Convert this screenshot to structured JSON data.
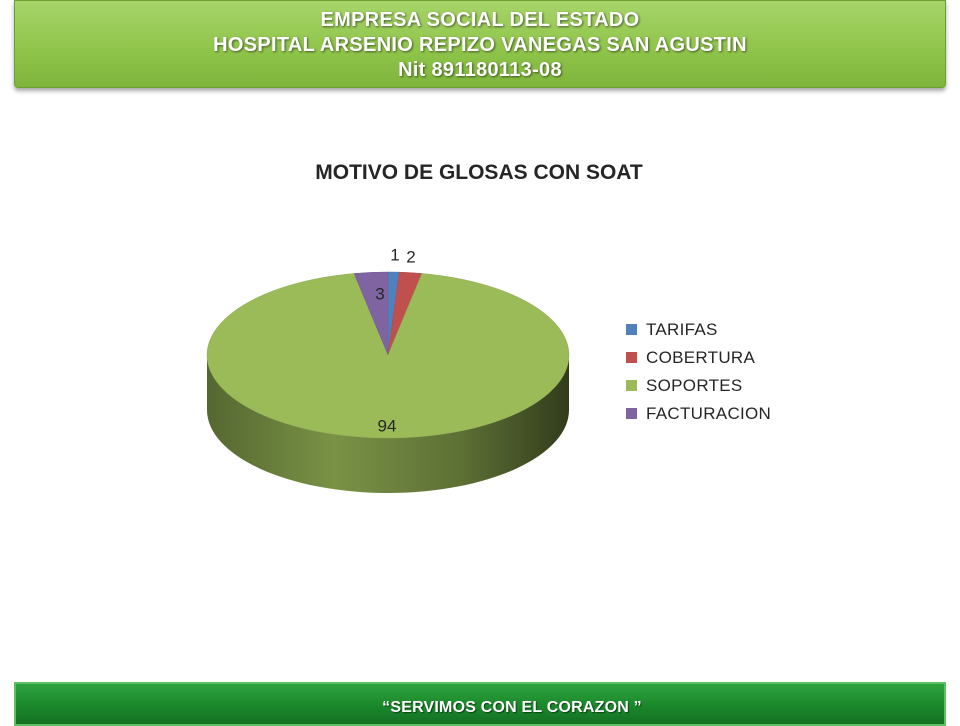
{
  "header": {
    "lines": [
      "EMPRESA SOCIAL DEL ESTADO",
      "HOSPITAL ARSENIO REPIZO  VANEGAS SAN  AGUSTIN",
      "Nit  891180113-08"
    ]
  },
  "chart_data": {
    "type": "pie",
    "title": "MOTIVO DE GLOSAS CON SOAT",
    "categories": [
      "TARIFAS",
      "COBERTURA",
      "SOPORTES",
      "FACTURACION"
    ],
    "values": [
      1,
      2,
      94,
      3
    ],
    "colors": [
      "#4f81bd",
      "#c0504d",
      "#9bbb59",
      "#8064a2"
    ],
    "style": "3d-tilted",
    "legend_position": "right",
    "data_labels": [
      "1",
      "2",
      "94",
      "3"
    ]
  },
  "footer": {
    "slogan": "“SERVIMOS CON EL  CORAZON ”"
  }
}
